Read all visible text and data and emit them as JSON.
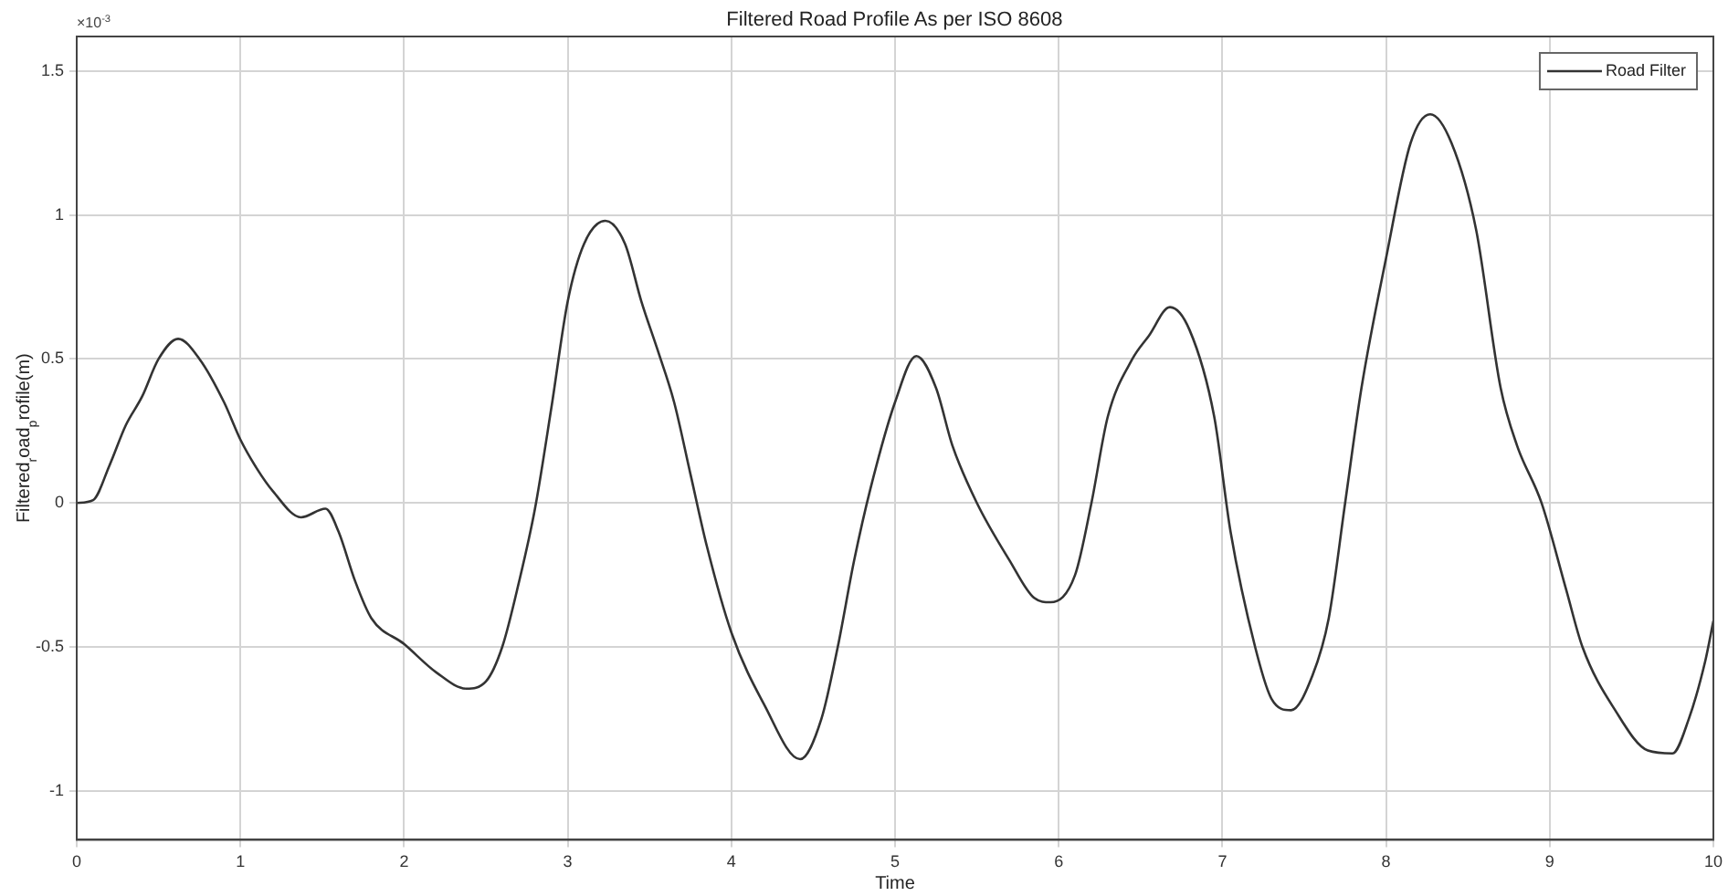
{
  "chart_data": {
    "type": "line",
    "title": "Filtered Road Profile As per ISO 8608",
    "xlabel": "Time",
    "ylabel": "Filtered$_{r}$oad$_{p}$rofile(m)",
    "annotations": [
      "×10$^{-3}$"
    ],
    "xlim": [
      0,
      10
    ],
    "xticks": [
      0,
      1,
      2,
      3,
      4,
      5,
      6,
      7,
      8,
      9,
      10
    ],
    "ylim": [
      -1.17,
      1.62
    ],
    "yticks": [
      -1,
      -0.5,
      0,
      0.5,
      1,
      1.5
    ],
    "grid": true,
    "legend": "top right",
    "marker": "none",
    "line_style": "solid",
    "series": [
      {
        "name": "Road Filter",
        "color": "#333333",
        "x": [
          0,
          0.1,
          0.2,
          0.3,
          0.4,
          0.5,
          0.62,
          0.75,
          0.9,
          1.0,
          1.1,
          1.2,
          1.37,
          1.52,
          1.6,
          1.7,
          1.8,
          2.0,
          2.2,
          2.38,
          2.5,
          2.6,
          2.7,
          2.8,
          2.9,
          3.0,
          3.1,
          3.23,
          3.35,
          3.45,
          3.55,
          3.65,
          3.75,
          3.85,
          4.0,
          4.2,
          4.42,
          4.55,
          4.65,
          4.75,
          4.85,
          5.0,
          5.13,
          5.25,
          5.35,
          5.5,
          5.7,
          5.85,
          5.95,
          6.1,
          6.2,
          6.3,
          6.45,
          6.55,
          6.68,
          6.8,
          6.95,
          7.05,
          7.2,
          7.3,
          7.42,
          7.55,
          7.65,
          7.75,
          7.85,
          8.0,
          8.15,
          8.27,
          8.4,
          8.55,
          8.7,
          8.8,
          8.95,
          9.1,
          9.2,
          9.4,
          9.6,
          9.75,
          9.85,
          9.95,
          10
        ],
        "values": [
          0,
          0.01,
          0.13,
          0.27,
          0.37,
          0.5,
          0.57,
          0.5,
          0.35,
          0.22,
          0.12,
          0.04,
          -0.05,
          -0.02,
          -0.1,
          -0.27,
          -0.4,
          -0.49,
          -0.59,
          -0.645,
          -0.62,
          -0.5,
          -0.28,
          -0.02,
          0.33,
          0.7,
          0.9,
          0.98,
          0.9,
          0.7,
          0.53,
          0.35,
          0.1,
          -0.15,
          -0.45,
          -0.7,
          -0.89,
          -0.75,
          -0.5,
          -0.2,
          0.05,
          0.35,
          0.51,
          0.4,
          0.2,
          0.0,
          -0.2,
          -0.33,
          -0.345,
          -0.25,
          0.0,
          0.3,
          0.5,
          0.58,
          0.68,
          0.6,
          0.3,
          -0.1,
          -0.5,
          -0.68,
          -0.72,
          -0.6,
          -0.4,
          0.0,
          0.4,
          0.85,
          1.25,
          1.35,
          1.25,
          0.95,
          0.4,
          0.2,
          0.0,
          -0.3,
          -0.5,
          -0.72,
          -0.86,
          -0.87,
          -0.75,
          -0.55,
          -0.41
        ]
      }
    ]
  }
}
